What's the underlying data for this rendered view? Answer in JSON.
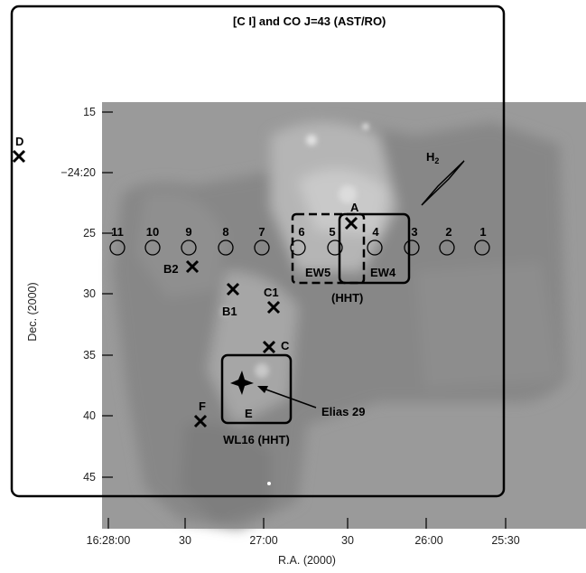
{
  "title": "[C I] and CO J=43   (AST/RO)",
  "axes": {
    "xlabel": "R.A. (2000)",
    "ylabel": "Dec. (2000)",
    "x_ticks": [
      "16:28:00",
      "30",
      "27:00",
      "30",
      "26:00",
      "25:30"
    ],
    "y_ticks": [
      "15",
      "−24:20",
      "25",
      "30",
      "35",
      "40",
      "45"
    ]
  },
  "positions": {
    "labels": [
      "11",
      "10",
      "9",
      "8",
      "7",
      "6",
      "5",
      "4",
      "3",
      "2",
      "1"
    ]
  },
  "sources": {
    "D": "D",
    "A": "A",
    "B2": "B2",
    "B1": "B1",
    "C1": "C1",
    "C": "C",
    "F": "F",
    "E": "E"
  },
  "h2_label": "H",
  "h2_subscript": "2",
  "boxes": {
    "ew5": "EW5",
    "ew4": "EW4",
    "hht": "(HHT)",
    "wl16": "WL16 (HHT)"
  },
  "elias_label": "Elias 29"
}
